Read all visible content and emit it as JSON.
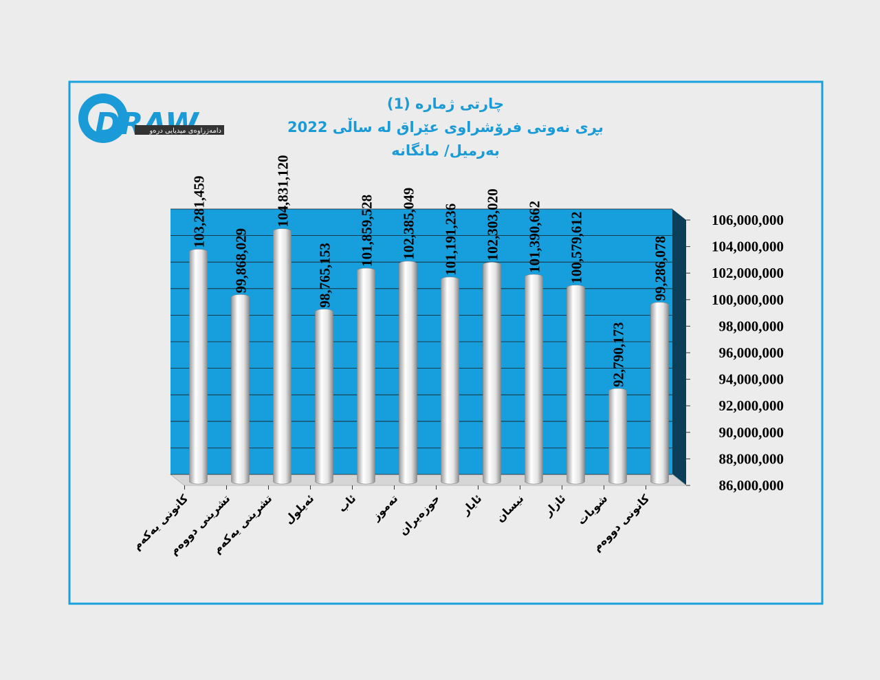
{
  "logo": {
    "text": "DRAW",
    "tagline": "دامەزراوەی میدیایی درەو"
  },
  "chart_data": {
    "type": "bar",
    "title": "چارتی ژمارە (1)",
    "subtitle": "بڕی نەوتی فرۆشراوی عێراق لە ساڵی 2022",
    "unit_label": "بەرمیل/ مانگانە",
    "categories": [
      "کانونی یەکەم",
      "تشرینی دووەم",
      "تشرینی یەکەم",
      "ئەیلول",
      "ئاب",
      "تەموز",
      "حوزەیران",
      "ئایار",
      "نیسان",
      "ئازار",
      "شوبات",
      "کانونی دووەم"
    ],
    "values": [
      103281459,
      99868029,
      104831120,
      98765153,
      101859528,
      102385049,
      101191236,
      102303020,
      101390662,
      100579612,
      92790173,
      99286078
    ],
    "value_labels": [
      "103,281,459",
      "99,868,029",
      "104,831,120",
      "98,765,153",
      "101,859,528",
      "102,385,049",
      "101,191,236",
      "102,303,020",
      "101,390,662",
      "100,579,612",
      "92,790,173",
      "99,286,078"
    ],
    "color": "#e6e6e6",
    "wall_color": "#169fdc",
    "ylim": [
      86000000,
      106000000
    ],
    "yticks": [
      {
        "value": 86000000,
        "label": "86,000,000"
      },
      {
        "value": 88000000,
        "label": "88,000,000"
      },
      {
        "value": 90000000,
        "label": "90,000,000"
      },
      {
        "value": 92000000,
        "label": "92,000,000"
      },
      {
        "value": 94000000,
        "label": "94,000,000"
      },
      {
        "value": 96000000,
        "label": "96,000,000"
      },
      {
        "value": 98000000,
        "label": "98,000,000"
      },
      {
        "value": 100000000,
        "label": "100,000,000"
      },
      {
        "value": 102000000,
        "label": "102,000,000"
      },
      {
        "value": 104000000,
        "label": "104,000,000"
      },
      {
        "value": 106000000,
        "label": "106,000,000"
      }
    ],
    "grid": true
  }
}
